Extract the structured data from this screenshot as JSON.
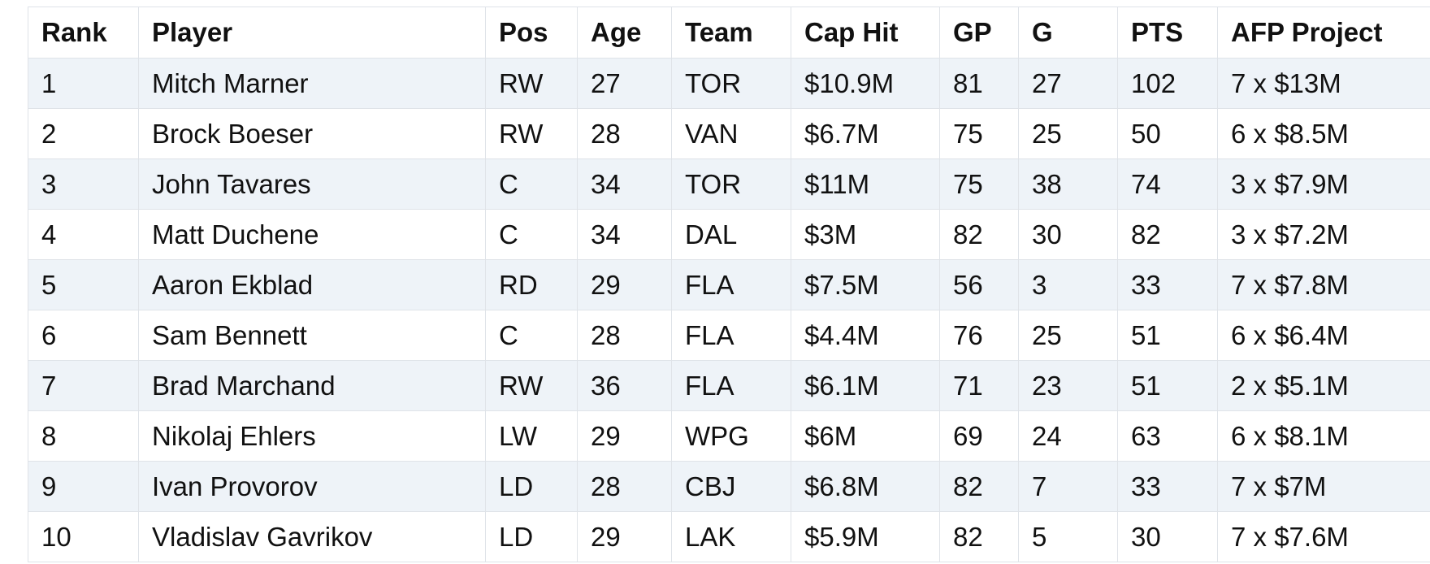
{
  "table": {
    "columns": [
      "Rank",
      "Player",
      "Pos",
      "Age",
      "Team",
      "Cap Hit",
      "GP",
      "G",
      "PTS",
      "AFP Project"
    ],
    "rows": [
      [
        "1",
        "Mitch Marner",
        "RW",
        "27",
        "TOR",
        "$10.9M",
        "81",
        "27",
        "102",
        "7 x $13M"
      ],
      [
        "2",
        "Brock Boeser",
        "RW",
        "28",
        "VAN",
        "$6.7M",
        "75",
        "25",
        "50",
        "6 x $8.5M"
      ],
      [
        "3",
        "John Tavares",
        "C",
        "34",
        "TOR",
        "$11M",
        "75",
        "38",
        "74",
        "3 x $7.9M"
      ],
      [
        "4",
        "Matt Duchene",
        "C",
        "34",
        "DAL",
        "$3M",
        "82",
        "30",
        "82",
        "3 x $7.2M"
      ],
      [
        "5",
        "Aaron Ekblad",
        "RD",
        "29",
        "FLA",
        "$7.5M",
        "56",
        "3",
        "33",
        "7 x $7.8M"
      ],
      [
        "6",
        "Sam Bennett",
        "C",
        "28",
        "FLA",
        "$4.4M",
        "76",
        "25",
        "51",
        "6 x $6.4M"
      ],
      [
        "7",
        "Brad Marchand",
        "RW",
        "36",
        "FLA",
        "$6.1M",
        "71",
        "23",
        "51",
        "2 x $5.1M"
      ],
      [
        "8",
        "Nikolaj Ehlers",
        "LW",
        "29",
        "WPG",
        "$6M",
        "69",
        "24",
        "63",
        "6 x $8.1M"
      ],
      [
        "9",
        "Ivan Provorov",
        "LD",
        "28",
        "CBJ",
        "$6.8M",
        "82",
        "7",
        "33",
        "7 x $7M"
      ],
      [
        "10",
        "Vladislav Gavrikov",
        "LD",
        "29",
        "LAK",
        "$5.9M",
        "82",
        "5",
        "30",
        "7 x $7.6M"
      ]
    ]
  }
}
